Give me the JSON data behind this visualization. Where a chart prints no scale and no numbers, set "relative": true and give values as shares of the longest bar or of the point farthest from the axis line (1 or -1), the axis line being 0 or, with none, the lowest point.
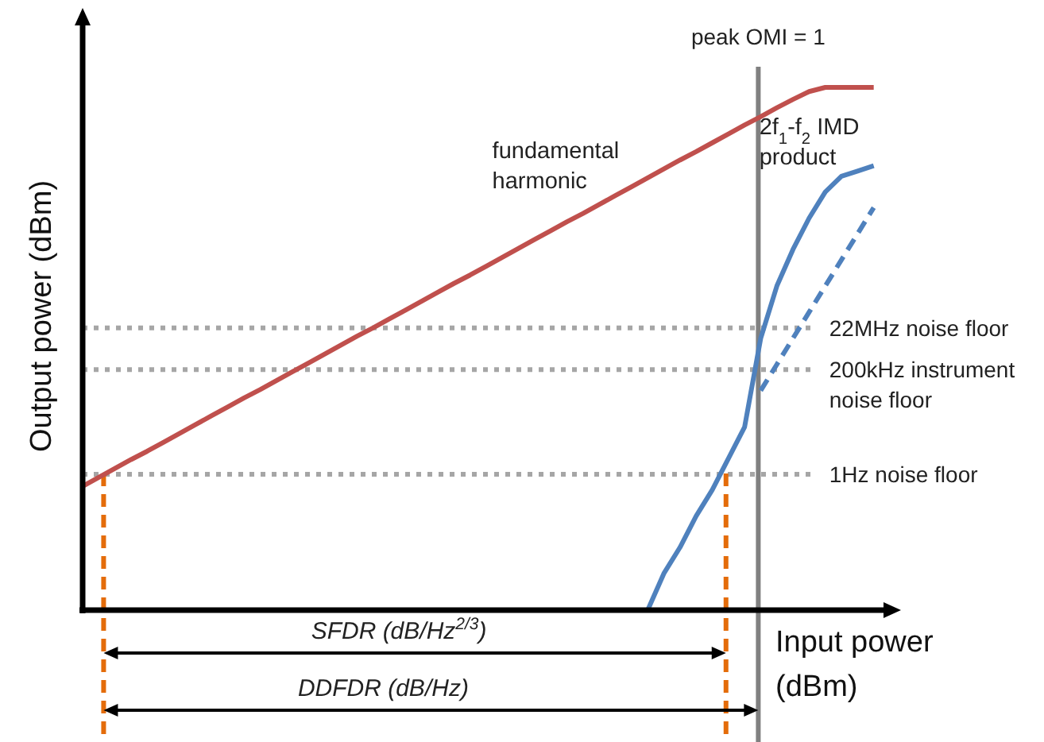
{
  "chart_data": {
    "type": "line",
    "relative": true,
    "xlabel": "Input power (dBm)",
    "ylabel": "Output power (dBm)",
    "legend": false,
    "grid": false,
    "marker": "none",
    "categories": [
      null,
      null,
      null,
      null,
      null,
      null,
      null,
      null,
      null,
      null,
      null,
      null,
      null,
      null,
      null,
      null,
      null,
      null,
      null,
      null,
      null,
      null,
      null,
      null,
      null,
      null,
      null,
      null,
      null,
      null,
      null,
      null,
      null,
      null,
      null,
      null,
      null,
      null,
      null,
      null,
      null,
      null,
      null,
      null,
      null,
      null,
      null,
      null,
      null,
      null,
      null
    ],
    "series": [
      {
        "name": "fundamental harmonic",
        "color": "#c0504d",
        "values": [
          0.237,
          0.254,
          0.271,
          0.288,
          0.304,
          0.321,
          0.338,
          0.355,
          0.372,
          0.389,
          0.406,
          0.422,
          0.439,
          0.456,
          0.473,
          0.49,
          0.507,
          0.524,
          0.54,
          0.557,
          0.574,
          0.591,
          0.608,
          0.625,
          0.641,
          0.658,
          0.675,
          0.692,
          0.709,
          0.726,
          0.743,
          0.759,
          0.776,
          0.793,
          0.81,
          0.827,
          0.844,
          0.861,
          0.877,
          0.894,
          0.911,
          0.928,
          0.944,
          0.961,
          0.977,
          0.992,
          1,
          1,
          1,
          1,
          null
        ]
      },
      {
        "name": "2f$_{1}$-f$_{2}$ IMD product",
        "color": "#4f81bd",
        "values": [
          null,
          null,
          null,
          null,
          null,
          null,
          null,
          null,
          null,
          null,
          null,
          null,
          null,
          null,
          null,
          null,
          null,
          null,
          null,
          null,
          null,
          null,
          null,
          null,
          null,
          null,
          null,
          null,
          null,
          null,
          null,
          null,
          null,
          null,
          null,
          0,
          0.07,
          0.12,
          0.18,
          0.23,
          0.29,
          0.35,
          0.52,
          0.62,
          0.69,
          0.75,
          0.8,
          0.83,
          0.84,
          0.85,
          null
        ]
      },
      {
        "color": "#4f81bd",
        "line_style": "dashed",
        "values": [
          null,
          null,
          null,
          null,
          null,
          null,
          null,
          null,
          null,
          null,
          null,
          null,
          null,
          null,
          null,
          null,
          null,
          null,
          null,
          null,
          null,
          null,
          null,
          null,
          null,
          null,
          null,
          null,
          null,
          null,
          null,
          null,
          null,
          null,
          null,
          null,
          null,
          null,
          null,
          null,
          null,
          null,
          0.42,
          0.47,
          0.52,
          0.57,
          0.62,
          0.67,
          0.72,
          0.77,
          null
        ]
      }
    ],
    "ref_lines": [
      {
        "axis": "y",
        "value": 0.54,
        "label": "22MHz noise floor",
        "color": "#a6a6a6",
        "line_style": "dotted"
      },
      {
        "axis": "y",
        "value": 0.46,
        "label": "200kHz instrument noise floor",
        "color": "#a6a6a6",
        "line_style": "dotted"
      },
      {
        "axis": "y",
        "value": 0.26,
        "label": "1Hz noise floor",
        "color": "#a6a6a6",
        "line_style": "dotted"
      }
    ],
    "annotations": [
      "SFDR (dB/Hz$^{2/3}$)",
      "DDFDR (dB/Hz)",
      "peak OMI = 1"
    ]
  }
}
